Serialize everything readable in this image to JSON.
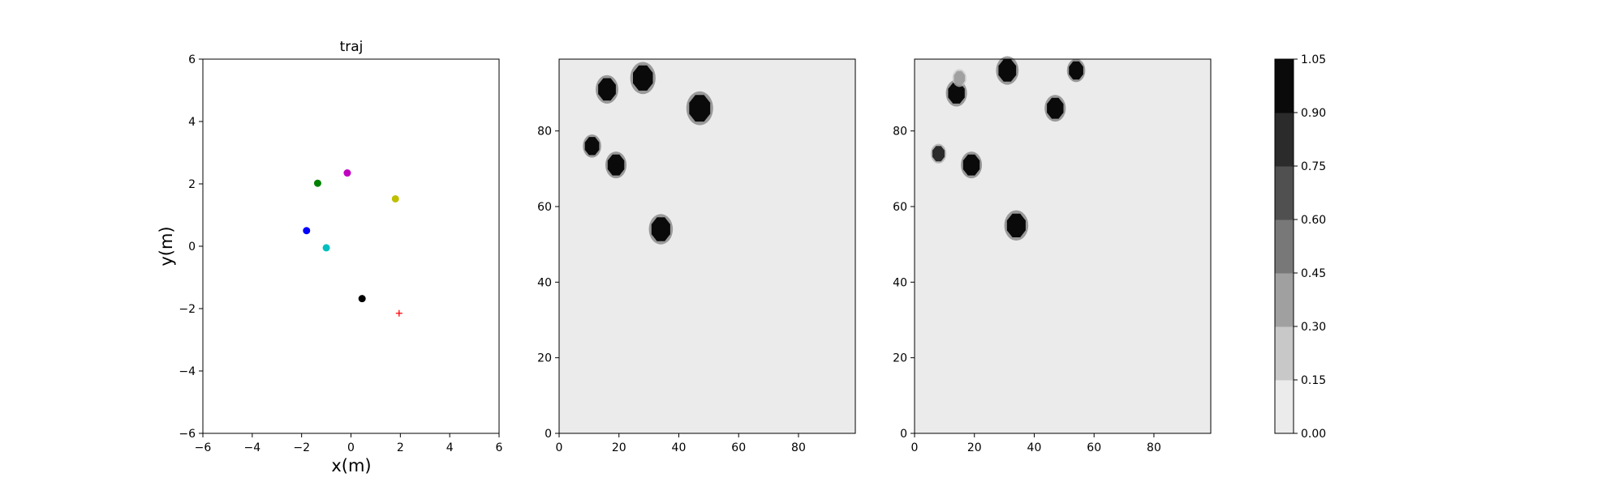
{
  "chart_data": [
    {
      "type": "scatter",
      "title": "traj",
      "xlabel": "x(m)",
      "ylabel": "y(m)",
      "xlim": [
        -6,
        6
      ],
      "ylim": [
        -6,
        6
      ],
      "xticks": [
        "−6",
        "−4",
        "−2",
        "0",
        "2",
        "4",
        "6"
      ],
      "yticks": [
        "−6",
        "−4",
        "−2",
        "0",
        "2",
        "4",
        "6"
      ],
      "grid": false,
      "points": [
        {
          "x": -1.8,
          "y": 0.5,
          "color": "#0000ff",
          "marker": "circle"
        },
        {
          "x": -1.0,
          "y": -0.05,
          "color": "#00bfbf",
          "marker": "circle"
        },
        {
          "x": -1.35,
          "y": 2.02,
          "color": "#008000",
          "marker": "circle"
        },
        {
          "x": -0.15,
          "y": 2.35,
          "color": "#bf00bf",
          "marker": "circle"
        },
        {
          "x": 1.8,
          "y": 1.52,
          "color": "#bfbf00",
          "marker": "circle"
        },
        {
          "x": 0.45,
          "y": -1.68,
          "color": "#000000",
          "marker": "circle"
        }
      ],
      "goal": {
        "x": 1.95,
        "y": -2.15,
        "color": "#ff0000",
        "marker": "plus"
      }
    },
    {
      "type": "heatmap",
      "xlim": [
        0,
        99
      ],
      "ylim": [
        0,
        99
      ],
      "xticks": [
        "0",
        "20",
        "40",
        "60",
        "80"
      ],
      "yticks": [
        "0",
        "20",
        "40",
        "60",
        "80"
      ],
      "background_value": 0.05,
      "blobs": [
        {
          "x": 16,
          "y": 91,
          "r": 3.2,
          "value": 1.0
        },
        {
          "x": 28,
          "y": 94,
          "r": 3.6,
          "value": 1.0
        },
        {
          "x": 47,
          "y": 86,
          "r": 3.8,
          "value": 1.0
        },
        {
          "x": 11,
          "y": 76,
          "r": 2.6,
          "value": 1.0
        },
        {
          "x": 19,
          "y": 71,
          "r": 3.0,
          "value": 1.0
        },
        {
          "x": 34,
          "y": 54,
          "r": 3.4,
          "value": 1.0
        }
      ]
    },
    {
      "type": "heatmap",
      "xlim": [
        0,
        99
      ],
      "ylim": [
        0,
        99
      ],
      "xticks": [
        "0",
        "20",
        "40",
        "60",
        "80"
      ],
      "yticks": [
        "0",
        "20",
        "40",
        "60",
        "80"
      ],
      "background_value": 0.05,
      "blobs": [
        {
          "x": 14,
          "y": 90,
          "r": 3.0,
          "value": 0.95
        },
        {
          "x": 15,
          "y": 94,
          "r": 2.0,
          "value": 0.4
        },
        {
          "x": 31,
          "y": 96,
          "r": 3.2,
          "value": 0.95
        },
        {
          "x": 54,
          "y": 96,
          "r": 2.6,
          "value": 0.95
        },
        {
          "x": 47,
          "y": 86,
          "r": 3.0,
          "value": 1.0
        },
        {
          "x": 8,
          "y": 74,
          "r": 2.2,
          "value": 0.85
        },
        {
          "x": 19,
          "y": 71,
          "r": 3.0,
          "value": 1.0
        },
        {
          "x": 34,
          "y": 55,
          "r": 3.4,
          "value": 1.0
        }
      ]
    },
    {
      "type": "colorbar",
      "levels": [
        "0.00",
        "0.15",
        "0.30",
        "0.45",
        "0.60",
        "0.75",
        "0.90",
        "1.05"
      ],
      "colors": [
        "#ebebeb",
        "#c8c8c8",
        "#a0a0a0",
        "#787878",
        "#505050",
        "#2b2b2b",
        "#0a0a0a"
      ]
    }
  ]
}
